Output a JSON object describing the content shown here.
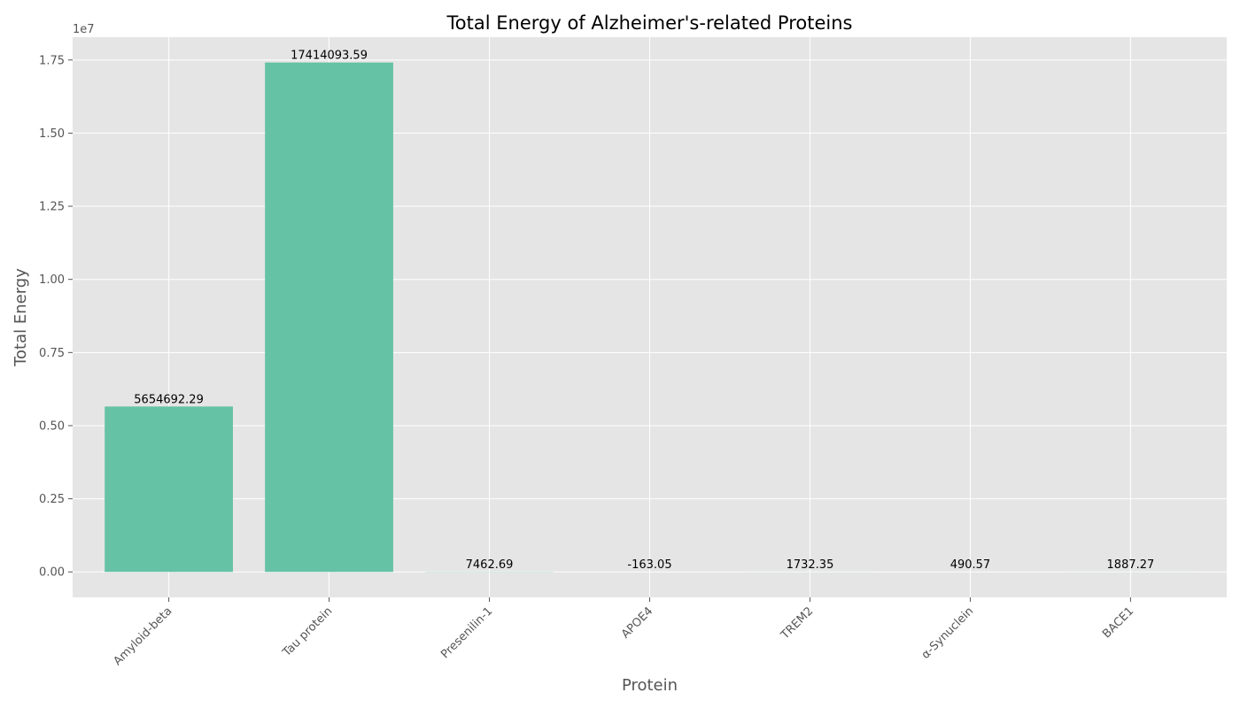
{
  "chart_data": {
    "type": "bar",
    "title": "Total Energy of Alzheimer's-related Proteins",
    "xlabel": "Protein",
    "ylabel": "Total Energy",
    "y_offset_text": "1e7",
    "y_scale": 10000000,
    "categories": [
      "Amyloid-beta",
      "Tau protein",
      "Presenilin-1",
      "APOE4",
      "TREM2",
      "α-Synuclein",
      "BACE1"
    ],
    "values": [
      5654692.29,
      17414093.59,
      7462.69,
      -163.05,
      1732.35,
      490.57,
      1887.27
    ],
    "value_labels": [
      "5654692.29",
      "17414093.59",
      "7462.69",
      "-163.05",
      "1732.35",
      "490.57",
      "1887.27"
    ],
    "ylim": [
      -870000,
      18280000
    ],
    "yticks": [
      0,
      2500000,
      5000000,
      7500000,
      10000000,
      12500000,
      15000000,
      17500000
    ],
    "ytick_labels": [
      "0.00",
      "0.25",
      "0.50",
      "0.75",
      "1.00",
      "1.25",
      "1.50",
      "1.75"
    ],
    "grid": true,
    "legend": false,
    "colors": {
      "bar": "#66c2a5",
      "plot_background": "#e5e5e5",
      "grid": "#ffffff"
    }
  }
}
